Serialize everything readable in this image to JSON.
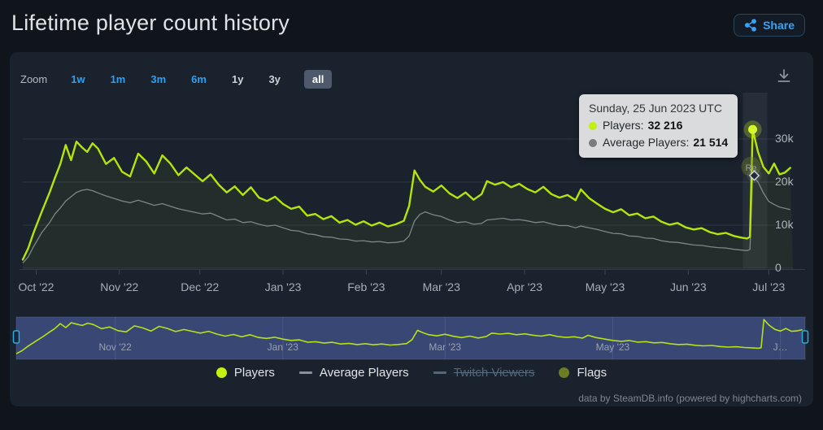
{
  "page": {
    "title": "Lifetime player count history",
    "share_label": "Share"
  },
  "toolbar": {
    "zoom_label": "Zoom",
    "ranges": [
      {
        "label": "1w",
        "style": "link"
      },
      {
        "label": "1m",
        "style": "link"
      },
      {
        "label": "3m",
        "style": "link"
      },
      {
        "label": "6m",
        "style": "link"
      },
      {
        "label": "1y",
        "style": "plain"
      },
      {
        "label": "3y",
        "style": "plain"
      },
      {
        "label": "all",
        "style": "selected"
      }
    ]
  },
  "axes": {
    "y_ticks": [
      {
        "label": "30k",
        "value": 30000
      },
      {
        "label": "20k",
        "value": 20000
      },
      {
        "label": "10k",
        "value": 10000
      },
      {
        "label": "0",
        "value": 0
      }
    ],
    "x_ticks": [
      {
        "label": "Oct '22",
        "date": "2022-10-01"
      },
      {
        "label": "Nov '22",
        "date": "2022-11-01"
      },
      {
        "label": "Dec '22",
        "date": "2022-12-01"
      },
      {
        "label": "Jan '23",
        "date": "2023-01-01"
      },
      {
        "label": "Feb '23",
        "date": "2023-02-01"
      },
      {
        "label": "Mar '23",
        "date": "2023-03-01"
      },
      {
        "label": "Apr '23",
        "date": "2023-04-01"
      },
      {
        "label": "May '23",
        "date": "2023-05-01"
      },
      {
        "label": "Jun '23",
        "date": "2023-06-01"
      },
      {
        "label": "Jul '23",
        "date": "2023-07-01"
      }
    ],
    "navigator_labels": [
      {
        "label": "Nov '22",
        "date": "2022-11-01"
      },
      {
        "label": "Jan '23",
        "date": "2023-01-01"
      },
      {
        "label": "Mar '23",
        "date": "2023-03-01"
      },
      {
        "label": "May '23",
        "date": "2023-05-01"
      },
      {
        "label": "J…",
        "date": "2023-07-01"
      }
    ]
  },
  "tooltip": {
    "date": "Sunday, 25 Jun 2023 UTC",
    "rows": [
      {
        "label": "Players:",
        "value": "32 216",
        "color": "#c3ef11"
      },
      {
        "label": "Average Players:",
        "value": "21 514",
        "color": "#7c7c7c"
      }
    ]
  },
  "legend": {
    "items": [
      {
        "label": "Players",
        "marker": "circle",
        "color": "#c7f112",
        "disabled": false
      },
      {
        "label": "Average Players",
        "marker": "dash",
        "color": "#8a9096",
        "disabled": false
      },
      {
        "label": "Twitch Viewers",
        "marker": "dash",
        "color": "#54677a",
        "disabled": true
      },
      {
        "label": "Flags",
        "marker": "circle",
        "color": "#6c7c25",
        "disabled": false
      }
    ]
  },
  "credits": "data by SteamDB.info (powered by highcharts.com)",
  "chart_data": {
    "type": "line",
    "title": "Lifetime player count history",
    "x_unit": "date",
    "x_range": [
      "2022-09-26",
      "2023-07-10"
    ],
    "ylim": [
      0,
      40000
    ],
    "y_gridlines": [
      0,
      10000,
      20000,
      30000
    ],
    "grid": "horizontal",
    "legend_position": "bottom",
    "navigator": true,
    "selected_range": "all",
    "columns": [
      "date",
      "players",
      "average_players"
    ],
    "data": [
      [
        "2022-09-26",
        2000,
        1200
      ],
      [
        "2022-09-28",
        4600,
        2600
      ],
      [
        "2022-09-30",
        8200,
        5000
      ],
      [
        "2022-10-03",
        13000,
        8200
      ],
      [
        "2022-10-06",
        17600,
        10600
      ],
      [
        "2022-10-08",
        21000,
        12600
      ],
      [
        "2022-10-10",
        24200,
        14000
      ],
      [
        "2022-10-12",
        28600,
        15600
      ],
      [
        "2022-10-14",
        25100,
        16600
      ],
      [
        "2022-10-16",
        29400,
        17600
      ],
      [
        "2022-10-18",
        28100,
        18100
      ],
      [
        "2022-10-20",
        27000,
        18300
      ],
      [
        "2022-10-22",
        29000,
        18000
      ],
      [
        "2022-10-24",
        27800,
        17500
      ],
      [
        "2022-10-27",
        24200,
        16800
      ],
      [
        "2022-10-30",
        25600,
        16200
      ],
      [
        "2022-11-02",
        22400,
        15600
      ],
      [
        "2022-11-05",
        21300,
        15200
      ],
      [
        "2022-11-08",
        26600,
        15800
      ],
      [
        "2022-11-11",
        24800,
        15200
      ],
      [
        "2022-11-14",
        22000,
        14600
      ],
      [
        "2022-11-17",
        26200,
        15000
      ],
      [
        "2022-11-20",
        24300,
        14400
      ],
      [
        "2022-11-23",
        21600,
        13800
      ],
      [
        "2022-11-26",
        23400,
        13400
      ],
      [
        "2022-11-29",
        21800,
        13000
      ],
      [
        "2022-12-02",
        20200,
        12600
      ],
      [
        "2022-12-05",
        21800,
        12800
      ],
      [
        "2022-12-08",
        19400,
        12000
      ],
      [
        "2022-12-11",
        17600,
        11200
      ],
      [
        "2022-12-14",
        19000,
        11400
      ],
      [
        "2022-12-17",
        17000,
        10600
      ],
      [
        "2022-12-20",
        18800,
        10800
      ],
      [
        "2022-12-23",
        16400,
        10200
      ],
      [
        "2022-12-26",
        15600,
        9800
      ],
      [
        "2022-12-29",
        16600,
        10000
      ],
      [
        "2023-01-01",
        14900,
        9400
      ],
      [
        "2023-01-04",
        13800,
        8800
      ],
      [
        "2023-01-07",
        14300,
        8600
      ],
      [
        "2023-01-10",
        12200,
        8000
      ],
      [
        "2023-01-13",
        12600,
        7800
      ],
      [
        "2023-01-16",
        11400,
        7300
      ],
      [
        "2023-01-19",
        12100,
        7200
      ],
      [
        "2023-01-22",
        10600,
        6800
      ],
      [
        "2023-01-25",
        11200,
        6700
      ],
      [
        "2023-01-28",
        10100,
        6300
      ],
      [
        "2023-01-31",
        10900,
        6400
      ],
      [
        "2023-02-03",
        9900,
        6100
      ],
      [
        "2023-02-06",
        10600,
        6200
      ],
      [
        "2023-02-09",
        9700,
        5900
      ],
      [
        "2023-02-12",
        10200,
        6000
      ],
      [
        "2023-02-15",
        11000,
        6300
      ],
      [
        "2023-02-17",
        14500,
        7500
      ],
      [
        "2023-02-19",
        22700,
        11000
      ],
      [
        "2023-02-21",
        20500,
        12500
      ],
      [
        "2023-02-23",
        18900,
        13100
      ],
      [
        "2023-02-26",
        17800,
        12400
      ],
      [
        "2023-03-01",
        19200,
        12000
      ],
      [
        "2023-03-04",
        17400,
        11200
      ],
      [
        "2023-03-07",
        16300,
        10600
      ],
      [
        "2023-03-10",
        17600,
        10800
      ],
      [
        "2023-03-13",
        15900,
        10200
      ],
      [
        "2023-03-16",
        17200,
        10400
      ],
      [
        "2023-03-18",
        20200,
        11200
      ],
      [
        "2023-03-21",
        19400,
        11400
      ],
      [
        "2023-03-24",
        20000,
        11600
      ],
      [
        "2023-03-27",
        18800,
        11200
      ],
      [
        "2023-03-30",
        19600,
        11300
      ],
      [
        "2023-04-02",
        18400,
        11000
      ],
      [
        "2023-04-05",
        17600,
        10600
      ],
      [
        "2023-04-08",
        18900,
        10800
      ],
      [
        "2023-04-11",
        17200,
        10300
      ],
      [
        "2023-04-14",
        16400,
        9900
      ],
      [
        "2023-04-17",
        17000,
        9900
      ],
      [
        "2023-04-20",
        15800,
        9400
      ],
      [
        "2023-04-22",
        18300,
        9800
      ],
      [
        "2023-04-25",
        16300,
        9400
      ],
      [
        "2023-04-28",
        15000,
        9000
      ],
      [
        "2023-05-01",
        13800,
        8500
      ],
      [
        "2023-05-04",
        13000,
        8100
      ],
      [
        "2023-05-07",
        13700,
        8000
      ],
      [
        "2023-05-10",
        12300,
        7500
      ],
      [
        "2023-05-13",
        12700,
        7400
      ],
      [
        "2023-05-16",
        11600,
        7000
      ],
      [
        "2023-05-19",
        12000,
        6900
      ],
      [
        "2023-05-22",
        10800,
        6400
      ],
      [
        "2023-05-25",
        10100,
        6100
      ],
      [
        "2023-05-28",
        10500,
        6000
      ],
      [
        "2023-05-31",
        9500,
        5700
      ],
      [
        "2023-06-03",
        9000,
        5400
      ],
      [
        "2023-06-06",
        9300,
        5300
      ],
      [
        "2023-06-09",
        8400,
        5000
      ],
      [
        "2023-06-12",
        7900,
        4800
      ],
      [
        "2023-06-15",
        8200,
        4700
      ],
      [
        "2023-06-18",
        7500,
        4400
      ],
      [
        "2023-06-21",
        7100,
        4200
      ],
      [
        "2023-06-23",
        6900,
        4100
      ],
      [
        "2023-06-24",
        7300,
        4400
      ],
      [
        "2023-06-25",
        32216,
        21514
      ],
      [
        "2023-06-27",
        27000,
        20000
      ],
      [
        "2023-06-29",
        23500,
        17500
      ],
      [
        "2023-07-01",
        22000,
        15500
      ],
      [
        "2023-07-03",
        24300,
        14800
      ],
      [
        "2023-07-05",
        21800,
        14200
      ],
      [
        "2023-07-07",
        22200,
        13900
      ],
      [
        "2023-07-09",
        23300,
        13600
      ]
    ],
    "series": [
      {
        "name": "Players",
        "color": "#b7e30c",
        "visible": true
      },
      {
        "name": "Average Players",
        "color": "#8a8f94",
        "visible": true
      },
      {
        "name": "Twitch Viewers",
        "color": "#54677a",
        "visible": false
      },
      {
        "name": "Flags",
        "color": "#6c7c25",
        "visible": true
      }
    ],
    "flags": [
      {
        "date": "2023-06-25",
        "label": "Re"
      }
    ],
    "hover_point": {
      "date": "2023-06-25",
      "players": 32216,
      "average_players": 21514
    }
  }
}
